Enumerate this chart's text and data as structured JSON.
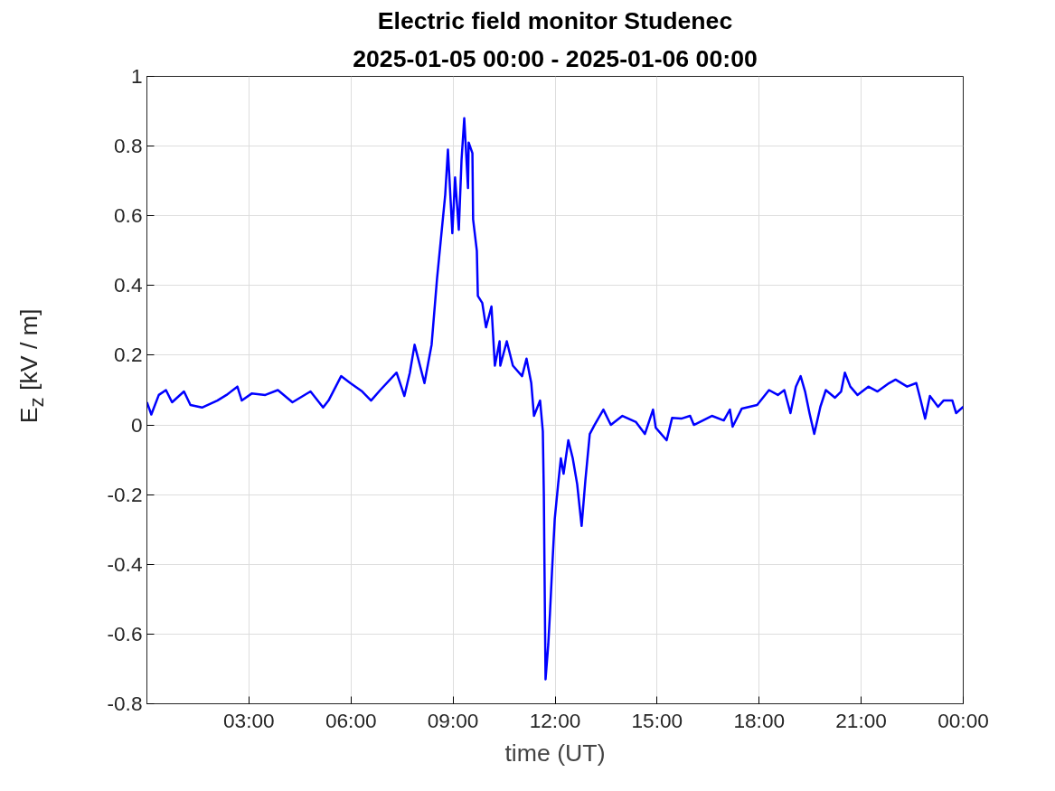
{
  "chart_data": {
    "type": "line",
    "title": "Electric field monitor Studenec",
    "subtitle": "2025-01-05 00:00 - 2025-01-06 00:00",
    "xlabel": "time (UT)",
    "ylabel": "E$_{z}$ [kV / m]",
    "x": [
      0,
      0.13,
      0.35,
      0.56,
      0.74,
      1.09,
      1.28,
      1.62,
      2.07,
      2.34,
      2.66,
      2.79,
      3.08,
      3.48,
      3.85,
      4.28,
      4.81,
      5.18,
      5.34,
      5.71,
      5.98,
      6.33,
      6.59,
      6.86,
      7.34,
      7.57,
      7.73,
      7.87,
      8.16,
      8.37,
      8.53,
      8.66,
      8.77,
      8.85,
      8.98,
      9.06,
      9.17,
      9.25,
      9.33,
      9.44,
      9.46,
      9.57,
      9.59,
      9.7,
      9.73,
      9.86,
      9.97,
      10.13,
      10.23,
      10.37,
      10.39,
      10.58,
      10.76,
      11.03,
      11.16,
      11.3,
      11.38,
      11.56,
      11.64,
      11.67,
      11.69,
      11.72,
      11.8,
      11.85,
      11.91,
      11.99,
      12.09,
      12.17,
      12.25,
      12.39,
      12.52,
      12.65,
      12.78,
      12.89,
      13.02,
      13.16,
      13.42,
      13.64,
      13.98,
      14.38,
      14.64,
      14.88,
      14.96,
      15.28,
      15.44,
      15.71,
      15.97,
      16.08,
      16.61,
      16.96,
      17.14,
      17.22,
      17.49,
      17.94,
      18.29,
      18.55,
      18.74,
      18.92,
      19.08,
      19.22,
      19.35,
      19.48,
      19.62,
      19.8,
      19.96,
      20.23,
      20.41,
      20.52,
      20.68,
      20.89,
      21.21,
      21.48,
      21.82,
      22.01,
      22.35,
      22.62,
      22.75,
      22.88,
      23.02,
      23.26,
      23.42,
      23.68,
      23.79,
      24
    ],
    "series": [
      {
        "color": "#0000ff",
        "values": [
          0.065,
          0.03,
          0.086,
          0.1,
          0.065,
          0.096,
          0.057,
          0.05,
          0.07,
          0.086,
          0.11,
          0.07,
          0.09,
          0.086,
          0.1,
          0.065,
          0.096,
          0.05,
          0.07,
          0.14,
          0.12,
          0.096,
          0.07,
          0.1,
          0.15,
          0.083,
          0.15,
          0.23,
          0.12,
          0.23,
          0.42,
          0.55,
          0.66,
          0.79,
          0.55,
          0.71,
          0.56,
          0.76,
          0.88,
          0.68,
          0.81,
          0.78,
          0.59,
          0.5,
          0.37,
          0.35,
          0.28,
          0.34,
          0.17,
          0.24,
          0.17,
          0.24,
          0.17,
          0.14,
          0.19,
          0.12,
          0.026,
          0.07,
          -0.018,
          -0.2,
          -0.42,
          -0.73,
          -0.63,
          -0.54,
          -0.42,
          -0.27,
          -0.17,
          -0.096,
          -0.14,
          -0.044,
          -0.096,
          -0.17,
          -0.29,
          -0.16,
          -0.026,
          0,
          0.044,
          0,
          0.026,
          0.008,
          -0.026,
          0.044,
          -0.008,
          -0.044,
          0.02,
          0.018,
          0.026,
          0,
          0.026,
          0.013,
          0.044,
          -0.005,
          0.047,
          0.057,
          0.1,
          0.086,
          0.1,
          0.034,
          0.11,
          0.14,
          0.096,
          0.034,
          -0.026,
          0.052,
          0.1,
          0.078,
          0.096,
          0.15,
          0.11,
          0.086,
          0.11,
          0.096,
          0.12,
          0.13,
          0.11,
          0.12,
          0.07,
          0.018,
          0.083,
          0.052,
          0.07,
          0.07,
          0.034,
          0.052
        ]
      }
    ],
    "xlim": [
      0,
      24
    ],
    "xticks": [
      {
        "value": 3,
        "label": "03:00"
      },
      {
        "value": 6,
        "label": "06:00"
      },
      {
        "value": 9,
        "label": "09:00"
      },
      {
        "value": 12,
        "label": "12:00"
      },
      {
        "value": 15,
        "label": "15:00"
      },
      {
        "value": 18,
        "label": "18:00"
      },
      {
        "value": 21,
        "label": "21:00"
      },
      {
        "value": 24,
        "label": "00:00"
      }
    ],
    "ylim": [
      -0.8,
      1
    ],
    "yticks": [
      -0.8,
      -0.6,
      -0.4,
      -0.2,
      0,
      0.2,
      0.4,
      0.6,
      0.8,
      1
    ],
    "grid": true,
    "line_style": "solid",
    "marker": "none"
  }
}
